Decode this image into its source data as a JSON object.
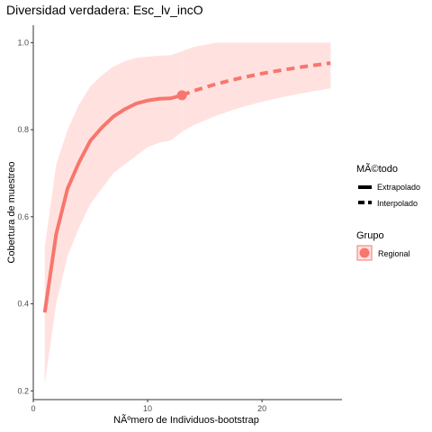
{
  "chart_data": {
    "type": "line",
    "title": "Diversidad verdadera: Esc_lv_incO",
    "xlabel": "NÃºmero de Individuos-bootstrap",
    "ylabel": "Cobertura de muestreo",
    "xlim": [
      0,
      27
    ],
    "ylim": [
      0.18,
      1.04
    ],
    "x_ticks": [
      0,
      10,
      20
    ],
    "y_ticks": [
      0.2,
      0.4,
      0.6,
      0.8,
      1.0
    ],
    "y_tick_labels": [
      "0.2",
      "0.4",
      "0.6",
      "0.8",
      "1.0"
    ],
    "grid": false,
    "colors": {
      "series": "#f8766d",
      "ribbon": "#ffe2e0",
      "axis": "#333333"
    },
    "reference_point": {
      "x": 13,
      "y": 0.879
    },
    "series": [
      {
        "name": "Regional",
        "method": "Extrapolado",
        "x": [
          1,
          2,
          3,
          4,
          5,
          6,
          7,
          8,
          9,
          10,
          11,
          12,
          13
        ],
        "y": [
          0.38,
          0.56,
          0.665,
          0.725,
          0.775,
          0.805,
          0.83,
          0.847,
          0.86,
          0.867,
          0.871,
          0.872,
          0.879
        ],
        "lower": [
          0.215,
          0.4,
          0.51,
          0.575,
          0.63,
          0.665,
          0.7,
          0.72,
          0.74,
          0.76,
          0.77,
          0.775,
          0.795
        ],
        "upper": [
          0.53,
          0.72,
          0.8,
          0.858,
          0.9,
          0.925,
          0.945,
          0.957,
          0.965,
          0.968,
          0.97,
          0.971,
          0.98
        ]
      },
      {
        "name": "Regional",
        "method": "Interpolado",
        "x": [
          13,
          14,
          16,
          18,
          20,
          22,
          24,
          26
        ],
        "y": [
          0.879,
          0.889,
          0.905,
          0.918,
          0.929,
          0.938,
          0.946,
          0.953
        ],
        "lower": [
          0.795,
          0.81,
          0.832,
          0.85,
          0.864,
          0.876,
          0.886,
          0.895
        ],
        "upper": [
          0.98,
          0.99,
          1.0,
          1.0,
          1.0,
          1.0,
          1.0,
          1.0
        ]
      }
    ],
    "legend": {
      "position": "right",
      "method_title": "MÃ©todo",
      "method_items": [
        "Extrapolado",
        "Interpolado"
      ],
      "group_title": "Grupo",
      "group_items": [
        "Regional"
      ]
    }
  }
}
